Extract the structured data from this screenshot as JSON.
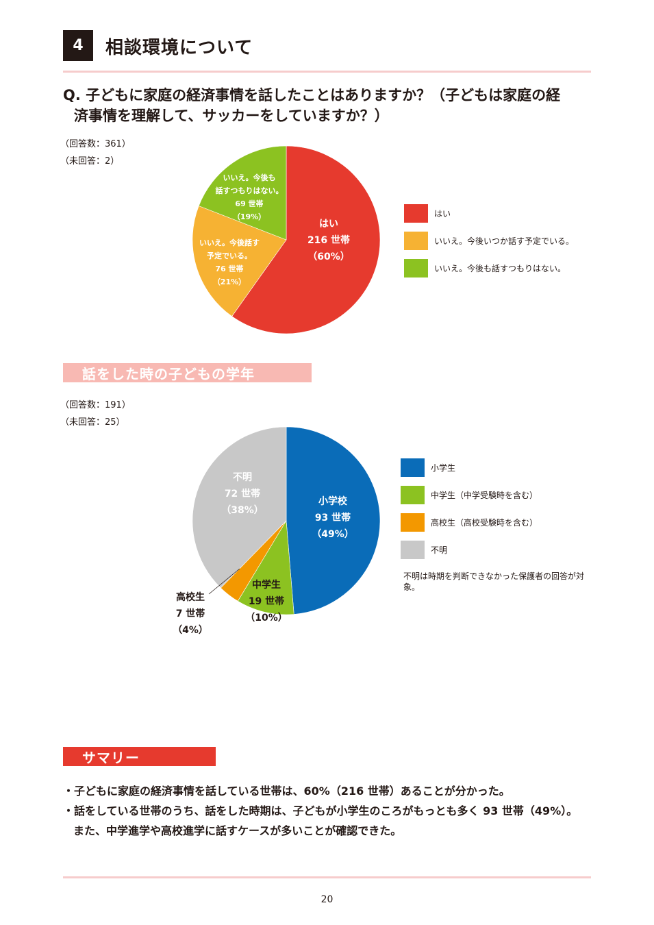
{
  "section": {
    "number": "4",
    "title": "相談環境について"
  },
  "question": {
    "line1": "Q. 子どもに家庭の経済事情を話したことはありますか？（子どもは家庭の経",
    "line2": "済事情を理解して、サッカーをしていますか？）"
  },
  "chart1_meta": {
    "responses": "（回答数：361）",
    "unanswered": "（未回答：2）"
  },
  "chart2_section_title": "話をした時の子どもの学年",
  "chart2_meta": {
    "responses": "（回答数：191）",
    "unanswered": "（未回答：25）"
  },
  "chart2_note": "不明は時期を判断できなかった保護者の回答が対象。",
  "summary": {
    "title": "サマリー",
    "bullet1": "・子どもに家庭の経済事情を話している世帯は、60%（216 世帯）あることが分かった。",
    "bullet2": "・話をしている世帯のうち、話をした時期は、子どもが小学生のころがもっとも多く 93 世帯（49%）。",
    "bullet2_cont": "また、中学進学や高校進学に話すケースが多いことが確認できた。"
  },
  "page_number": "20",
  "colors": {
    "accent": "#e63a2e",
    "band_pink": "#f8b9b3",
    "rule": "#f6cccc"
  },
  "chart_data": [
    {
      "type": "pie",
      "series": [
        {
          "name": "はい",
          "value": 216,
          "percent": 60,
          "color": "#e63a2e",
          "label_lines": [
            "はい",
            "216 世帯",
            "（60%）"
          ]
        },
        {
          "name": "いいえ。今後いつか話す予定でいる。",
          "value": 76,
          "percent": 21,
          "color": "#f6b233",
          "label_lines": [
            "いいえ。今後話す",
            "予定でいる。",
            "76 世帯",
            "（21%）"
          ]
        },
        {
          "name": "いいえ。今後も話すつもりはない。",
          "value": 69,
          "percent": 19,
          "color": "#8cc221",
          "label_lines": [
            "いいえ。今後も",
            "話すつもりはない。",
            "69 世帯",
            "（19%）"
          ]
        }
      ],
      "legend_position": "right"
    },
    {
      "type": "pie",
      "series": [
        {
          "name": "小学生",
          "value": 93,
          "percent": 49,
          "color": "#0a6cb8",
          "label_lines": [
            "小学校",
            "93 世帯",
            "（49%）"
          ]
        },
        {
          "name": "中学生（中学受験時を含む）",
          "value": 19,
          "percent": 10,
          "color": "#8cc221",
          "label_lines": [
            "中学生",
            "19 世帯",
            "（10%）"
          ]
        },
        {
          "name": "高校生（高校受験時を含む）",
          "value": 7,
          "percent": 4,
          "color": "#f39800",
          "label_lines": [
            "高校生",
            "7 世帯",
            "（4%）"
          ]
        },
        {
          "name": "不明",
          "value": 72,
          "percent": 38,
          "color": "#c8c8c8",
          "label_lines": [
            "不明",
            "72 世帯",
            "（38%）"
          ]
        }
      ],
      "legend_position": "right"
    }
  ]
}
